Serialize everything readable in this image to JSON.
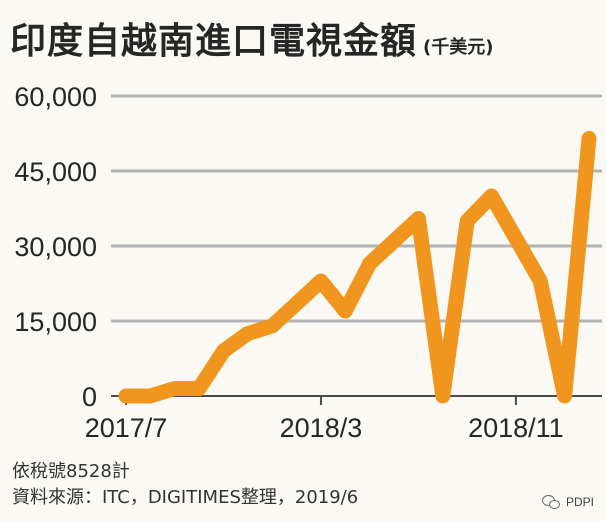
{
  "header": {
    "title": "印度自越南進口電視金額",
    "unit": "(千美元)"
  },
  "notes": {
    "author": "依稅號8528計",
    "source": "資料來源：ITC，DIGITIMES整理，2019/6"
  },
  "watermark": {
    "text": "PDPI",
    "icon": "wechat-icon"
  },
  "chart_data": {
    "type": "line",
    "title": "印度自越南進口電視金額",
    "unit": "千美元",
    "xlabel": "",
    "ylabel": "",
    "x": [
      "2017/7",
      "2017/8",
      "2017/9",
      "2017/10",
      "2017/11",
      "2017/12",
      "2018/1",
      "2018/2",
      "2018/3",
      "2018/4",
      "2018/5",
      "2018/6",
      "2018/7",
      "2018/8",
      "2018/9",
      "2018/10",
      "2018/11",
      "2018/12",
      "2019/1",
      "2019/2"
    ],
    "x_tick_labels": [
      "2017/7",
      "2018/3",
      "2018/11"
    ],
    "x_tick_at": [
      "2017/7",
      "2018/3",
      "2018/11"
    ],
    "series": [
      {
        "values": [
          0,
          0,
          1500,
          1500,
          9000,
          12500,
          14000,
          18500,
          23000,
          17000,
          26500,
          31000,
          35500,
          0,
          35000,
          40000,
          31500,
          23000,
          0,
          51500
        ]
      }
    ],
    "ylim": [
      0,
      60000
    ],
    "y_ticks": [
      0,
      15000,
      30000,
      45000,
      60000
    ],
    "y_tick_labels": [
      "0",
      "15,000",
      "30,000",
      "45,000",
      "60,000"
    ],
    "grid": true,
    "line_color": "#f0961e",
    "grid_color": "#b3b3b3",
    "legend": "none"
  }
}
